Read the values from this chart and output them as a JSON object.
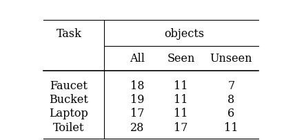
{
  "col_header_top": "objects",
  "col_header_sub": [
    "All",
    "Seen",
    "Unseen"
  ],
  "row_header": "Task",
  "rows": [
    "Faucet",
    "Bucket",
    "Laptop",
    "Toilet"
  ],
  "data": [
    [
      18,
      11,
      7
    ],
    [
      19,
      11,
      8
    ],
    [
      17,
      11,
      6
    ],
    [
      28,
      17,
      11
    ]
  ],
  "bg_color": "#ffffff",
  "text_color": "#000000",
  "font_size": 11.5,
  "header_font_size": 11.5
}
